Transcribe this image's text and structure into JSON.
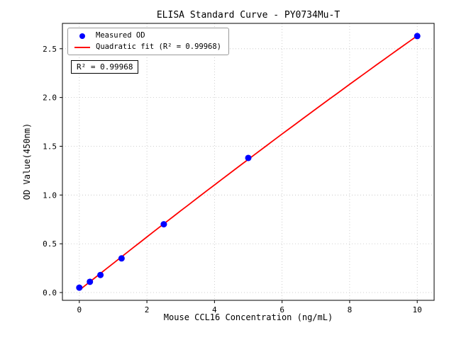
{
  "chart_data": {
    "type": "scatter",
    "title": "ELISA Standard Curve - PY0734Mu-T",
    "xlabel": "Mouse CCL16 Concentration (ng/mL)",
    "ylabel": "OD Value(450nm)",
    "xlim": [
      -0.5,
      10.5
    ],
    "ylim": [
      -0.08,
      2.76
    ],
    "x_ticks": [
      0,
      2,
      4,
      6,
      8,
      10
    ],
    "x_tick_labels": [
      "0",
      "2",
      "4",
      "6",
      "8",
      "10"
    ],
    "y_ticks": [
      0.0,
      0.5,
      1.0,
      1.5,
      2.0,
      2.5
    ],
    "y_tick_labels": [
      "0.0",
      "0.5",
      "1.0",
      "1.5",
      "2.0",
      "2.5"
    ],
    "grid": true,
    "grid_color": "#c0c0c0",
    "legend_position": "upper left",
    "annotation": "R² = 0.99968",
    "series": [
      {
        "name": "Measured OD",
        "type": "scatter",
        "color": "#0000ff",
        "x": [
          0,
          0.313,
          0.625,
          1.25,
          2.5,
          5,
          10
        ],
        "y": [
          0.05,
          0.11,
          0.18,
          0.35,
          0.7,
          1.38,
          2.63
        ]
      },
      {
        "name": "Quadratic fit (R² = 0.99968)",
        "type": "line",
        "color": "#ff0000"
      }
    ]
  }
}
